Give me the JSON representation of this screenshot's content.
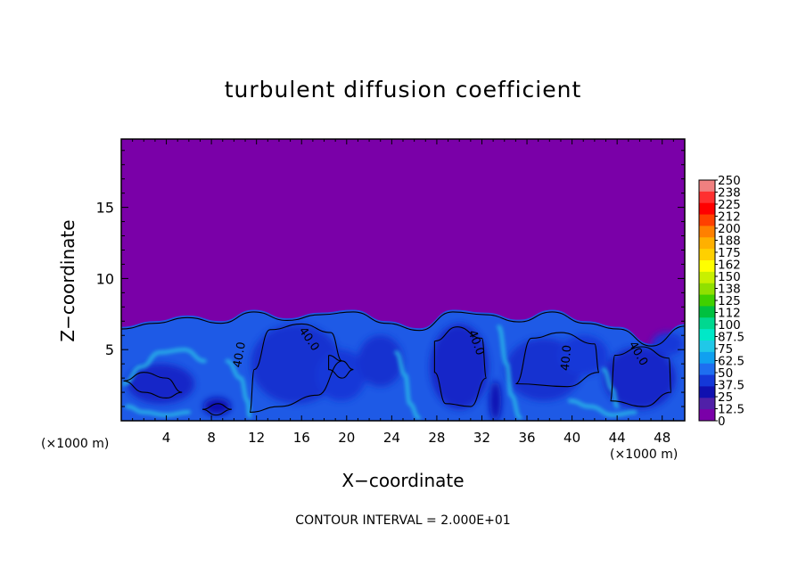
{
  "chart_data": {
    "type": "heatmap",
    "title": "turbulent diffusion coefficient",
    "xlabel": "X−coordinate",
    "ylabel": "Z−coordinate",
    "x_unit_label": "(×1000 m)",
    "xlim": [
      0,
      50
    ],
    "ylim": [
      0,
      19.8
    ],
    "x_ticks": [
      "4",
      "8",
      "12",
      "16",
      "20",
      "24",
      "28",
      "32",
      "36",
      "40",
      "44",
      "48"
    ],
    "y_ticks": [
      "5",
      "10",
      "15"
    ],
    "colorbar_labels": [
      "250",
      "238",
      "225",
      "212",
      "200",
      "188",
      "175",
      "162",
      "150",
      "138",
      "125",
      "112",
      "100",
      "87.5",
      "75",
      "62.5",
      "50",
      "37.5",
      "25",
      "12.5",
      "0"
    ],
    "colorbar_colors": [
      "#f08080",
      "#ff3030",
      "#ff0000",
      "#ff4000",
      "#ff8000",
      "#ffb000",
      "#ffd000",
      "#ffff00",
      "#c8f000",
      "#90e000",
      "#40d000",
      "#00c040",
      "#00d890",
      "#00e8c8",
      "#20c8e8",
      "#10a0f0",
      "#1e6ef0",
      "#1438d8",
      "#1010b0",
      "#5020a8",
      "#7a00a8"
    ],
    "contour_labels": [
      "40.0",
      "40.0",
      "40.0",
      "40.0",
      "40.0"
    ],
    "contour_interval_text": "CONTOUR INTERVAL =  2.000E+01",
    "background_color": "#7a00a8",
    "boundary_layer_top_km": [
      6.6,
      7.0,
      7.4,
      7.0,
      7.8,
      7.2,
      7.6,
      7.8,
      7.0,
      6.5,
      7.8,
      7.6,
      7.1,
      7.8,
      7.0,
      6.6,
      5.4,
      6.8
    ]
  }
}
